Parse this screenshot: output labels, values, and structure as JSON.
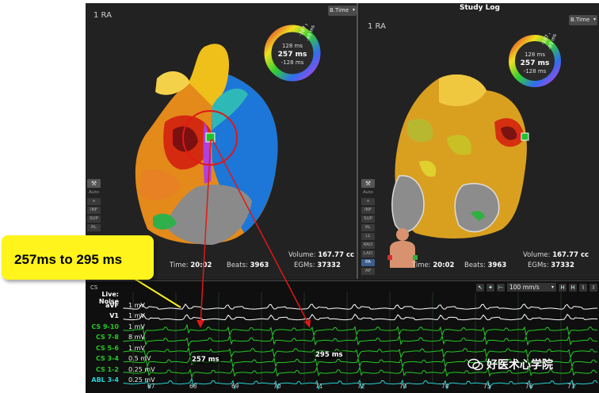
{
  "left_map": {
    "label": "1 RA",
    "mode": "B.Time",
    "ring": {
      "top": "-107 ms",
      "right": "-99 ms",
      "upper": "128 ms",
      "center": "257 ms",
      "lower": "-128 ms"
    },
    "tools": [
      "Auto",
      "+",
      "INF",
      "SUP",
      "RL"
    ],
    "time_label": "Time:",
    "time": "20:02",
    "beats_label": "Beats:",
    "beats": "3963",
    "volume_label": "Volume:",
    "volume": "167.77 cc",
    "egms_label": "EGMs:",
    "egms": "37332"
  },
  "right_map": {
    "title": "Study Log",
    "label": "1 RA",
    "mode": "B.Time",
    "ring": {
      "top": "-107 ms",
      "right": "-99 ms",
      "upper": "128 ms",
      "center": "257 ms",
      "lower": "-128 ms"
    },
    "tools": [
      "Auto",
      "+",
      "INF",
      "SUP",
      "RL",
      "LL",
      "RAO",
      "LAO",
      "PA",
      "AP"
    ],
    "active_tool": "PA",
    "time_label": "Time:",
    "time": "20:02",
    "beats_label": "Beats:",
    "beats": "3963",
    "volume_label": "Volume:",
    "volume": "167.77 cc",
    "egms_label": "EGMs:",
    "egms": "37332"
  },
  "ecg": {
    "title": "CS",
    "speed": "100 mm/s",
    "toolbar_icons": [
      "pointer-icon",
      "marker-icon",
      "caliper-icon"
    ],
    "toolbar_right": [
      "H",
      "H",
      "I",
      "I"
    ],
    "channels": [
      {
        "name": "Live: Noise",
        "scale": "",
        "color": "#ffffff"
      },
      {
        "name": "aVF",
        "scale": "1 mV",
        "color": "#ffffff"
      },
      {
        "name": "V1",
        "scale": "1 mV",
        "color": "#ffffff"
      },
      {
        "name": "CS 9-10",
        "scale": "1 mV",
        "color": "#22cc22"
      },
      {
        "name": "CS 7-8",
        "scale": "8 mV",
        "color": "#22cc22"
      },
      {
        "name": "CS 5-6",
        "scale": "1 mV",
        "color": "#22cc22"
      },
      {
        "name": "CS 3-4",
        "scale": "0.5 mV",
        "color": "#22cc22"
      },
      {
        "name": "CS 1-2",
        "scale": "0.25 mV",
        "color": "#22cc22"
      },
      {
        "name": "ABL 3-4",
        "scale": "0.25 mV",
        "color": "#27d3d3"
      }
    ],
    "ticks": [
      "67",
      "68",
      "69",
      "70",
      "71",
      "72",
      "73",
      "74",
      "75",
      "76",
      "77"
    ],
    "measure_1": "257 ms",
    "measure_2": "295 ms"
  },
  "callout": "257ms to 295 ms",
  "watermark": "好医术心学院"
}
